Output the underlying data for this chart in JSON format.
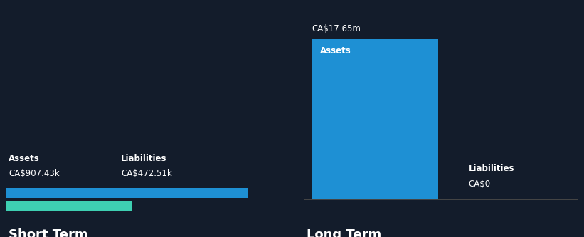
{
  "bg_color": "#131c2b",
  "short_term": {
    "label": "Short Term",
    "assets_value": 907430,
    "liabilities_value": 472510,
    "assets_label": "Assets",
    "assets_value_label": "CA$907.43k",
    "liabilities_label": "Liabilities",
    "liabilities_value_label": "CA$472.51k",
    "assets_color": "#1e90d4",
    "liabilities_color": "#3ecfb2"
  },
  "long_term": {
    "label": "Long Term",
    "assets_value": 17650000,
    "liabilities_value": 0,
    "assets_label": "Assets",
    "assets_value_label": "CA$17.65m",
    "liabilities_label": "Liabilities",
    "liabilities_value_label": "CA$0",
    "assets_color": "#1e90d4",
    "liabilities_color": "#3ecfb2"
  },
  "text_color": "#ffffff",
  "label_fontsize": 8.5,
  "value_fontsize": 8.5,
  "section_label_fontsize": 13,
  "divider_color": "#444444"
}
